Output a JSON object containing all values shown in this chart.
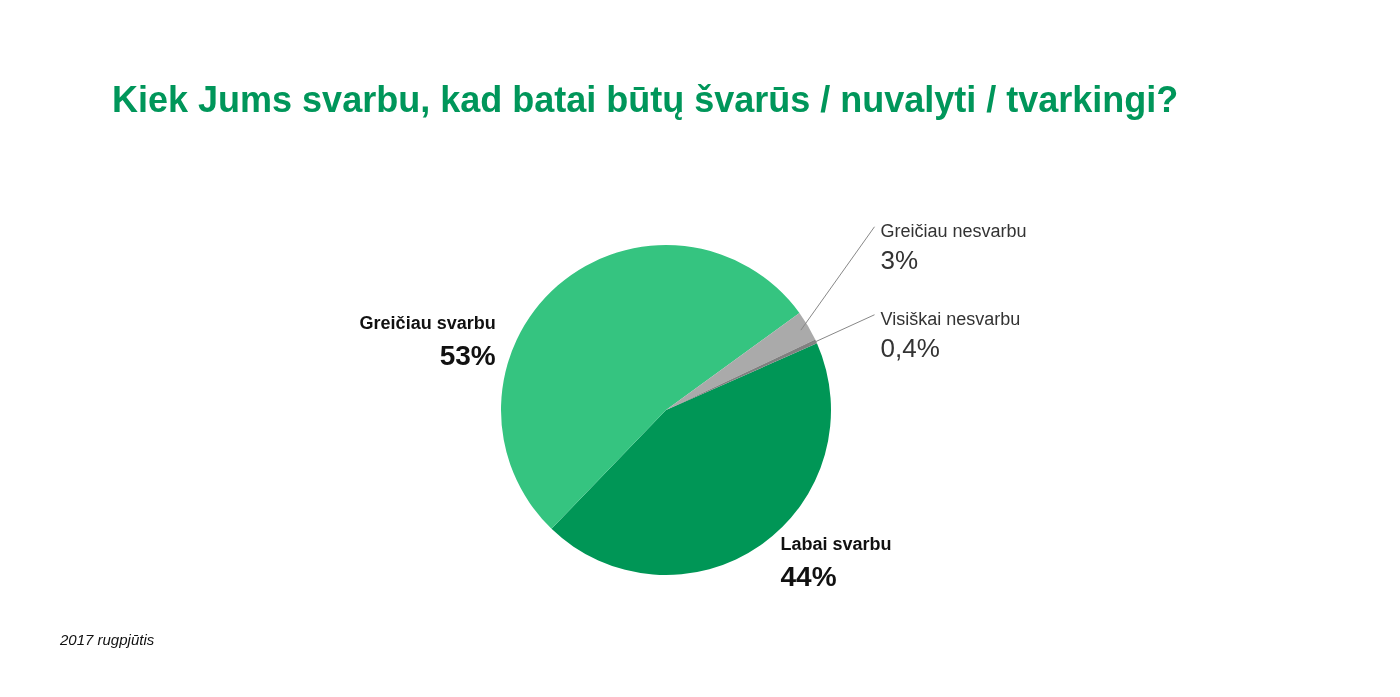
{
  "chart_data": {
    "type": "pie",
    "title": "Kiek Jums svarbu, kad batai būtų švarūs / nuvalyti / tvarkingi?",
    "categories": [
      "Labai svarbu",
      "Greičiau svarbu",
      "Greičiau nesvarbu",
      "Visiškai nesvarbu"
    ],
    "values": [
      44,
      53,
      3,
      0.4
    ],
    "colors": [
      "#009656",
      "#35c480",
      "#aaaaaa",
      "#808080"
    ],
    "value_labels": [
      "44%",
      "53%",
      "3%",
      "0,4%"
    ],
    "annotations": [
      "2017 rugpjūtis"
    ]
  }
}
